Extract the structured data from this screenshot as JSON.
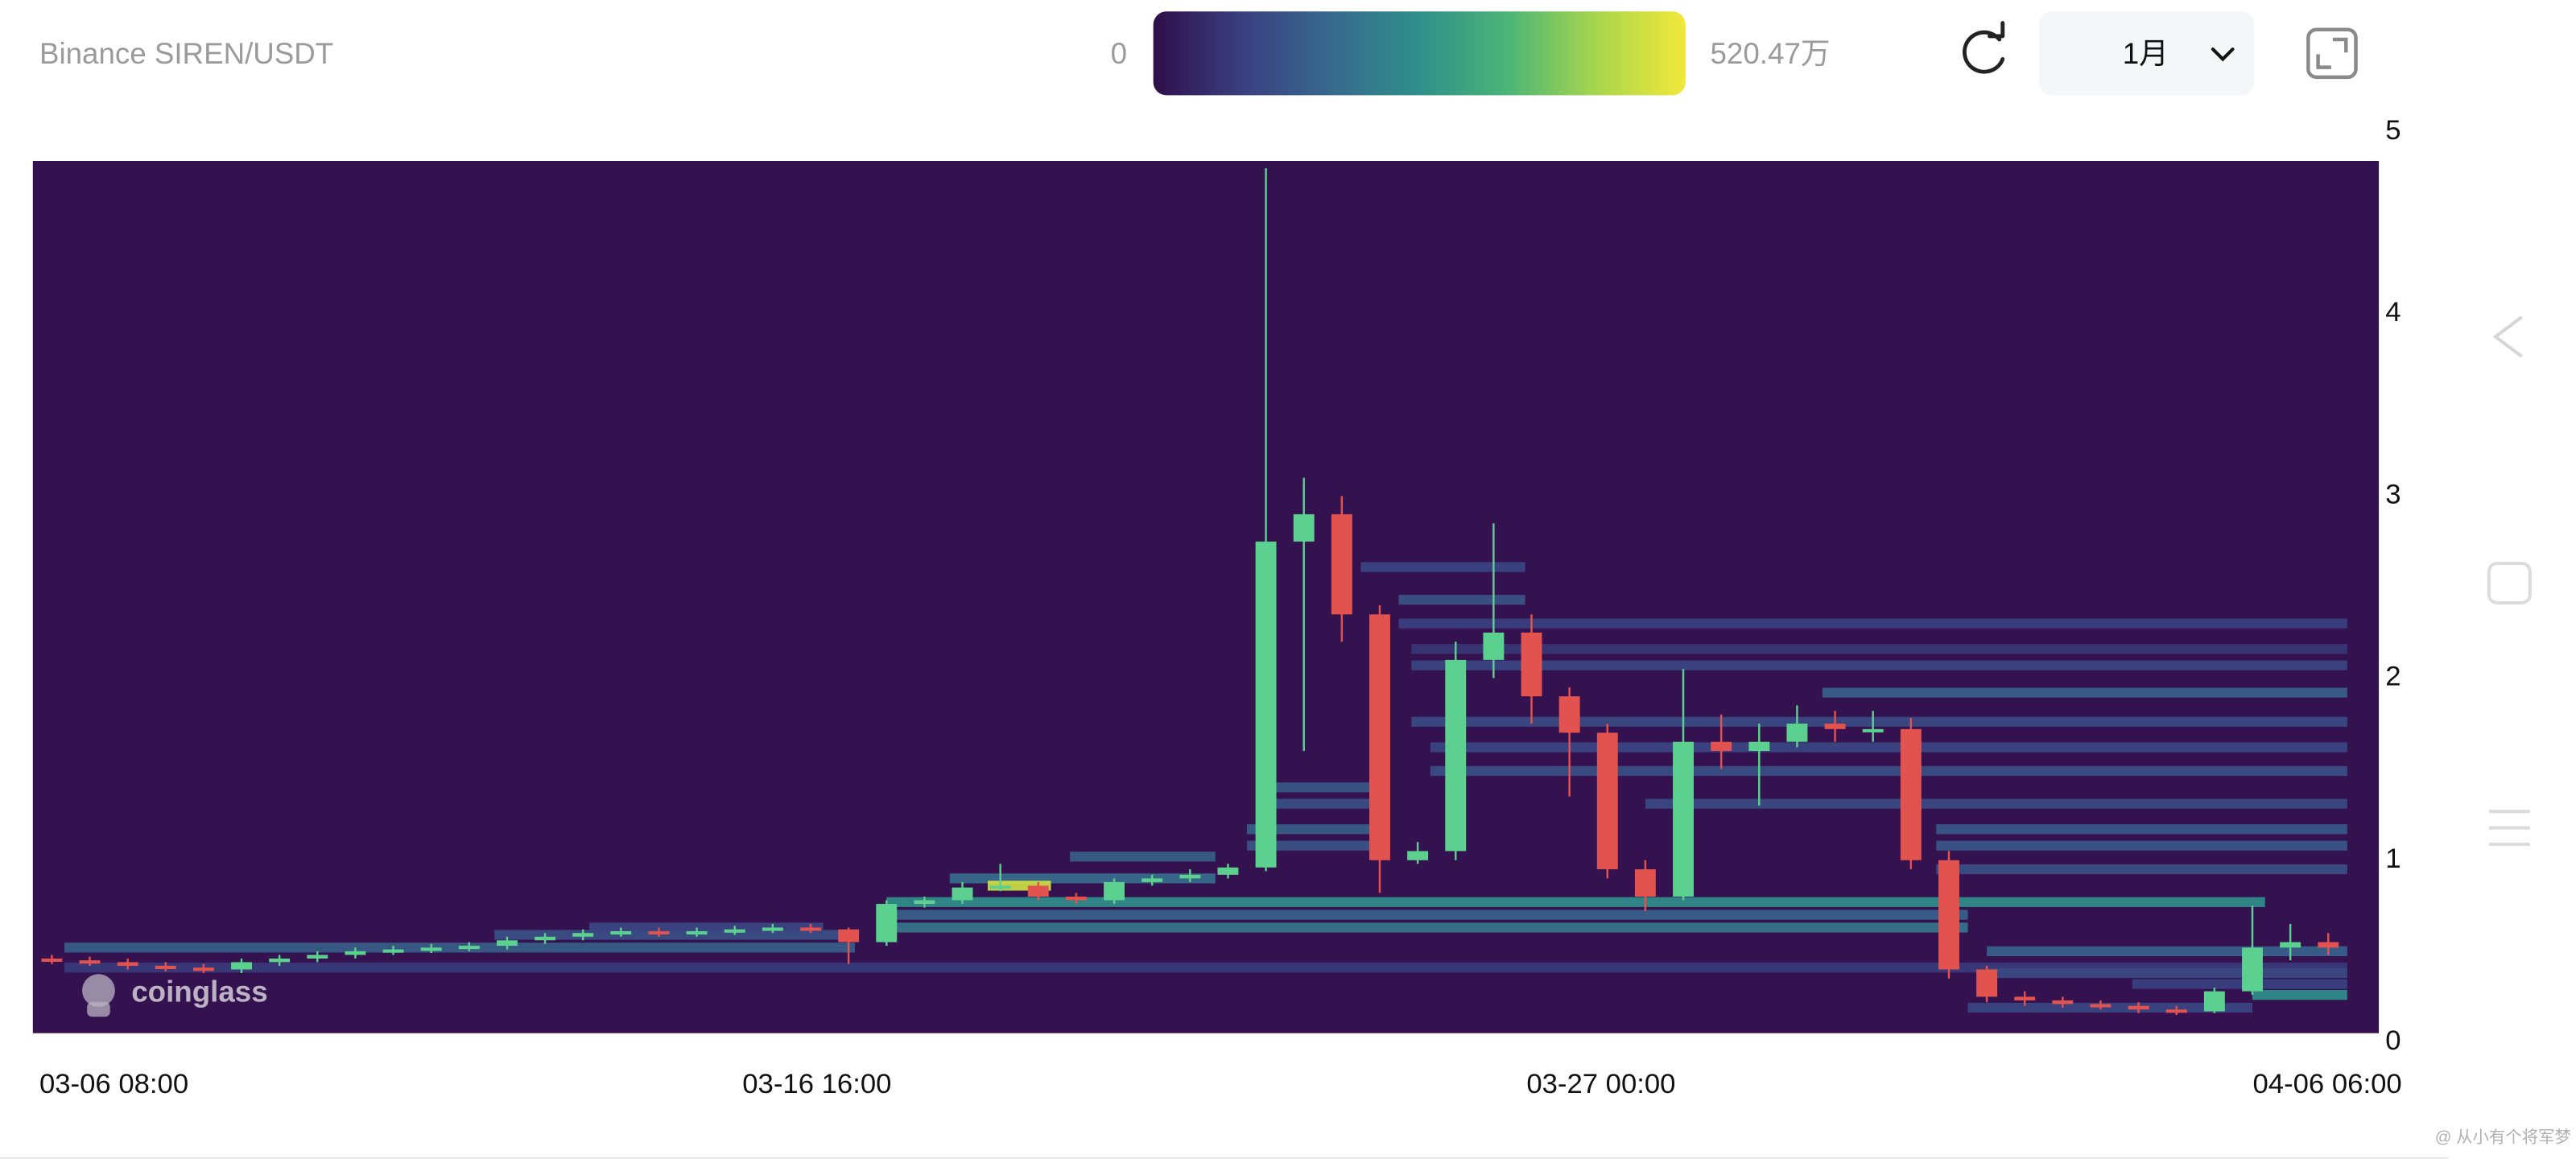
{
  "chart_data": {
    "type": "heatmap",
    "title": "Binance SIREN/USDT",
    "timeframe": "1月",
    "watermark": "coinglass",
    "clim": [
      0,
      5204700
    ],
    "colorbar_ticks": [
      0,
      {
        "value": 5204700,
        "label": "520.47万"
      }
    ],
    "colorscale": [
      "#2f0f4a",
      "#3a3f80",
      "#37698d",
      "#2f8f8b",
      "#4cb577",
      "#a8d64c",
      "#f2e83a"
    ],
    "background": "#34114f",
    "xlim": [
      "03-06 08:00",
      "04-06 06:00"
    ],
    "xticks": [
      "03-06 08:00",
      "03-16 16:00",
      "03-27 00:00",
      "04-06 06:00"
    ],
    "ylim": [
      0.05,
      4.84
    ],
    "yticks": [
      0,
      1,
      2,
      3,
      4,
      5
    ],
    "levels": {
      "price": [
        0.52,
        0.59,
        0.63,
        0.41,
        0.77,
        0.63,
        0.7,
        0.9,
        1.02,
        1.4,
        1.31,
        1.17,
        1.08,
        2.61,
        2.43,
        2.3,
        2.16,
        2.07,
        1.92,
        1.76,
        1.62,
        1.49,
        1.31,
        1.17,
        1.08,
        0.95,
        0.5,
        0.38,
        0.26,
        0.19,
        0.32,
        0.86
      ],
      "start": [
        "03-06 18:00",
        "03-12 10:00",
        "03-13 16:00",
        "03-06 18:00",
        "03-17 14:00",
        "03-17 14:00",
        "03-17 14:00",
        "03-18 10:00",
        "03-20 00:00",
        "03-22 14:00",
        "03-22 14:00",
        "03-22 08:00",
        "03-22 08:00",
        "03-23 20:00",
        "03-24 08:00",
        "03-24 08:00",
        "03-24 12:00",
        "03-24 12:00",
        "03-29 22:00",
        "03-24 12:00",
        "03-24 18:00",
        "03-24 18:00",
        "03-27 14:00",
        "03-31 10:00",
        "03-31 10:00",
        "03-31 10:00",
        "04-01 02:00",
        "04-01 02:00",
        "04-04 14:00",
        "03-31 20:00",
        "04-03 00:00",
        "03-18 22:00"
      ],
      "end": [
        "03-17 04:00",
        "03-17 04:00",
        "03-16 18:00",
        "04-05 20:00",
        "04-04 18:00",
        "03-31 20:00",
        "03-31 20:00",
        "03-21 22:00",
        "03-21 22:00",
        "03-24 04:00",
        "03-24 04:00",
        "03-24 04:00",
        "03-24 04:00",
        "03-26 00:00",
        "03-26 00:00",
        "04-05 20:00",
        "04-05 20:00",
        "04-05 20:00",
        "04-05 20:00",
        "04-05 20:00",
        "04-05 20:00",
        "04-05 20:00",
        "04-05 20:00",
        "04-05 20:00",
        "04-05 20:00",
        "04-05 20:00",
        "04-05 20:00",
        "04-05 20:00",
        "04-05 20:00",
        "04-04 14:00",
        "04-05 20:00",
        "03-19 18:00"
      ],
      "amount": [
        1500000,
        1200000,
        1000000,
        800000,
        2600000,
        2000000,
        1600000,
        1800000,
        1500000,
        1400000,
        1200000,
        1500000,
        1300000,
        1000000,
        1300000,
        900000,
        700000,
        1000000,
        1600000,
        1100000,
        1000000,
        1200000,
        1100000,
        1400000,
        1400000,
        1200000,
        1600000,
        1100000,
        2600000,
        1000000,
        900000,
        4800000
      ]
    },
    "candles": {
      "up_color": "#5cd08e",
      "down_color": "#e2524f",
      "x": [
        "03-06 08:00",
        "03-06 20:00",
        "03-07 08:00",
        "03-07 20:00",
        "03-08 08:00",
        "03-08 20:00",
        "03-09 08:00",
        "03-09 20:00",
        "03-10 08:00",
        "03-10 20:00",
        "03-11 08:00",
        "03-11 20:00",
        "03-12 08:00",
        "03-12 20:00",
        "03-13 08:00",
        "03-13 20:00",
        "03-14 08:00",
        "03-14 20:00",
        "03-15 08:00",
        "03-15 20:00",
        "03-16 08:00",
        "03-16 20:00",
        "03-17 08:00",
        "03-17 20:00",
        "03-18 08:00",
        "03-18 20:00",
        "03-19 08:00",
        "03-19 20:00",
        "03-20 08:00",
        "03-20 20:00",
        "03-21 08:00",
        "03-21 20:00",
        "03-22 08:00",
        "03-22 20:00",
        "03-23 08:00",
        "03-23 20:00",
        "03-24 08:00",
        "03-24 20:00",
        "03-25 08:00",
        "03-25 20:00",
        "03-26 08:00",
        "03-26 20:00",
        "03-27 08:00",
        "03-27 20:00",
        "03-28 08:00",
        "03-28 20:00",
        "03-29 08:00",
        "03-29 20:00",
        "03-30 08:00",
        "03-30 20:00",
        "03-31 08:00",
        "03-31 20:00",
        "04-01 08:00",
        "04-01 20:00",
        "04-02 08:00",
        "04-02 20:00",
        "04-03 08:00",
        "04-03 20:00",
        "04-04 08:00",
        "04-04 20:00",
        "04-05 08:00"
      ],
      "open": [
        0.46,
        0.45,
        0.44,
        0.42,
        0.41,
        0.4,
        0.44,
        0.46,
        0.48,
        0.5,
        0.51,
        0.52,
        0.53,
        0.56,
        0.58,
        0.6,
        0.61,
        0.6,
        0.61,
        0.62,
        0.63,
        0.62,
        0.55,
        0.76,
        0.78,
        0.85,
        0.86,
        0.8,
        0.78,
        0.88,
        0.9,
        0.92,
        0.96,
        2.75,
        2.9,
        2.35,
        1.0,
        1.05,
        2.1,
        2.25,
        1.9,
        1.7,
        0.95,
        0.8,
        1.65,
        1.6,
        1.65,
        1.75,
        1.72,
        1.72,
        1.0,
        0.4,
        0.25,
        0.23,
        0.21,
        0.2,
        0.18,
        0.17,
        0.28,
        0.52,
        0.55
      ],
      "high": [
        0.48,
        0.47,
        0.46,
        0.44,
        0.43,
        0.46,
        0.48,
        0.5,
        0.52,
        0.53,
        0.54,
        0.55,
        0.58,
        0.6,
        0.62,
        0.63,
        0.63,
        0.63,
        0.64,
        0.65,
        0.65,
        0.63,
        0.78,
        0.8,
        0.88,
        0.98,
        0.88,
        0.82,
        0.9,
        0.92,
        0.95,
        0.98,
        4.8,
        3.1,
        3.0,
        2.4,
        1.1,
        2.2,
        2.85,
        2.35,
        1.95,
        1.75,
        1.0,
        2.05,
        1.8,
        1.75,
        1.85,
        1.82,
        1.82,
        1.78,
        1.05,
        0.42,
        0.28,
        0.25,
        0.23,
        0.22,
        0.2,
        0.3,
        0.75,
        0.65,
        0.6
      ],
      "low": [
        0.43,
        0.42,
        0.4,
        0.39,
        0.38,
        0.38,
        0.42,
        0.44,
        0.46,
        0.48,
        0.49,
        0.5,
        0.51,
        0.54,
        0.56,
        0.58,
        0.58,
        0.58,
        0.59,
        0.6,
        0.6,
        0.43,
        0.53,
        0.74,
        0.76,
        0.83,
        0.78,
        0.76,
        0.76,
        0.86,
        0.88,
        0.9,
        0.94,
        1.6,
        2.2,
        0.82,
        0.98,
        1.0,
        2.0,
        1.75,
        1.35,
        0.9,
        0.72,
        0.78,
        1.5,
        1.3,
        1.62,
        1.65,
        1.65,
        0.95,
        0.35,
        0.22,
        0.2,
        0.19,
        0.18,
        0.16,
        0.15,
        0.16,
        0.26,
        0.45,
        0.48
      ],
      "close": [
        0.45,
        0.44,
        0.42,
        0.41,
        0.4,
        0.44,
        0.46,
        0.48,
        0.5,
        0.51,
        0.52,
        0.53,
        0.56,
        0.58,
        0.6,
        0.61,
        0.6,
        0.61,
        0.62,
        0.63,
        0.62,
        0.55,
        0.76,
        0.78,
        0.85,
        0.86,
        0.8,
        0.78,
        0.88,
        0.9,
        0.92,
        0.96,
        2.75,
        2.9,
        2.35,
        1.0,
        1.05,
        2.1,
        2.25,
        1.9,
        1.7,
        0.95,
        0.8,
        1.65,
        1.6,
        1.65,
        1.75,
        1.72,
        1.72,
        1.0,
        0.4,
        0.25,
        0.23,
        0.21,
        0.2,
        0.18,
        0.17,
        0.28,
        0.52,
        0.55,
        0.52
      ]
    }
  },
  "ui": {
    "credit": "@ 从小有个将军梦"
  }
}
